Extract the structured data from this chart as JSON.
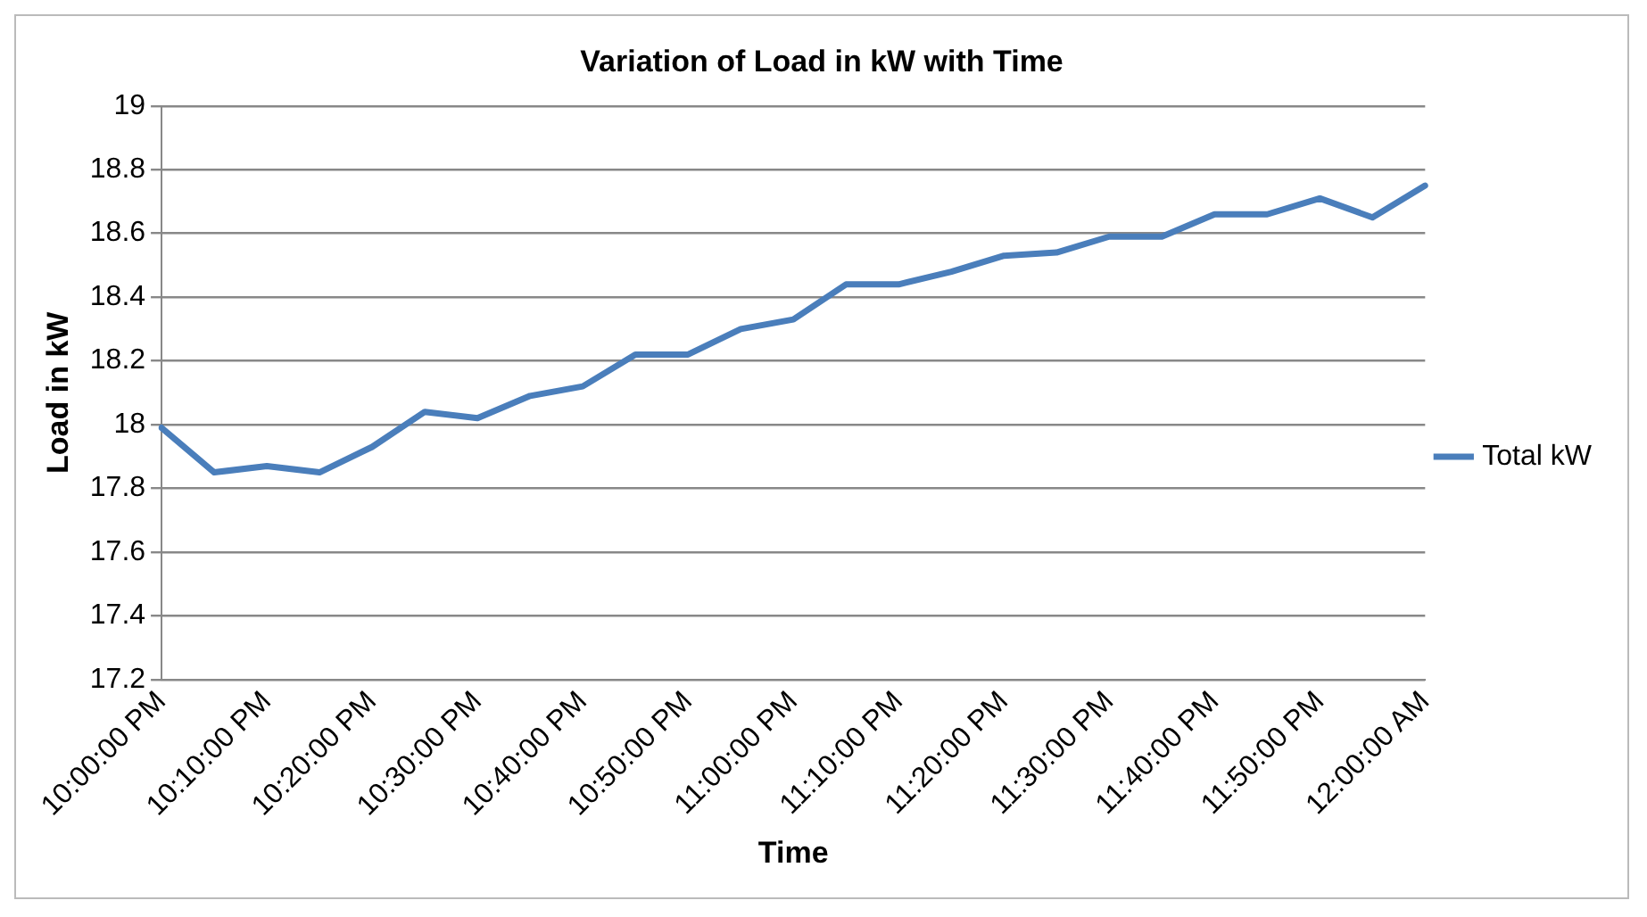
{
  "chart_data": {
    "type": "line",
    "title": "Variation of Load in kW with Time",
    "xlabel": "Time",
    "ylabel": "Load in kW",
    "categories": [
      "10:00:00 PM",
      null,
      "10:10:00 PM",
      null,
      "10:20:00 PM",
      null,
      "10:30:00 PM",
      null,
      "10:40:00 PM",
      null,
      "10:50:00 PM",
      null,
      "11:00:00 PM",
      null,
      "11:10:00 PM",
      null,
      "11:20:00 PM",
      null,
      "11:30:00 PM",
      null,
      "11:40:00 PM",
      null,
      "11:50:00 PM",
      null,
      "12:00:00 AM"
    ],
    "series": [
      {
        "name": "Total kW",
        "color": "#4a7ebb",
        "values": [
          17.99,
          17.85,
          17.87,
          17.85,
          17.93,
          18.04,
          18.02,
          18.09,
          18.12,
          18.22,
          18.22,
          18.3,
          18.33,
          18.44,
          18.44,
          18.48,
          18.53,
          18.54,
          18.59,
          18.59,
          18.66,
          18.66,
          18.71,
          18.65,
          18.75
        ]
      }
    ],
    "ylim": [
      17.2,
      19
    ],
    "yticks": [
      17.2,
      17.4,
      17.6,
      17.8,
      18,
      18.2,
      18.4,
      18.6,
      18.8,
      19
    ],
    "grid": "y",
    "legend": "right",
    "marker": "none",
    "line_style": "solid"
  }
}
